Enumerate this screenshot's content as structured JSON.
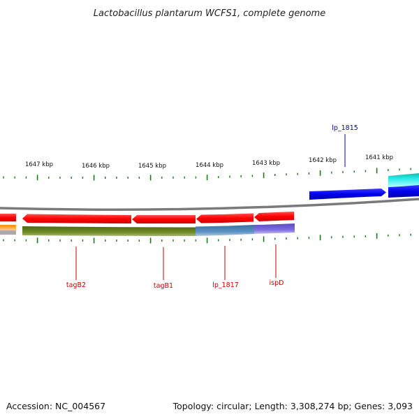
{
  "title": "Lactobacillus plantarum WCFS1, complete genome",
  "footer": {
    "accession": "Accession: NC_004567",
    "topology": "Topology: circular; Length: 3,308,274 bp; Genes: 3,093"
  },
  "ruler": {
    "labels": [
      "1647 kbp",
      "1646 kbp",
      "1645 kbp",
      "1644 kbp",
      "1643 kbp",
      "1642 kbp",
      "1641 kbp"
    ],
    "tick_color": "#1a7a1a"
  },
  "colors": {
    "gene_red": "#ff0000",
    "gene_blue": "#0000ee",
    "cds_cyan": "#22dddd",
    "track_green": "#5e7a1a",
    "track_steel": "#4682b4",
    "track_slate": "#6a5acd",
    "track_orange": "#ff9900",
    "backbone": "#808080",
    "label_red": "#cc0000",
    "label_blue": "#0000aa"
  },
  "genes": [
    {
      "name": "tagB2",
      "color": "red"
    },
    {
      "name": "tagB1",
      "color": "red"
    },
    {
      "name": "lp_1817",
      "color": "red"
    },
    {
      "name": "ispD",
      "color": "red"
    },
    {
      "name": "lp_1815",
      "color": "blue"
    }
  ]
}
